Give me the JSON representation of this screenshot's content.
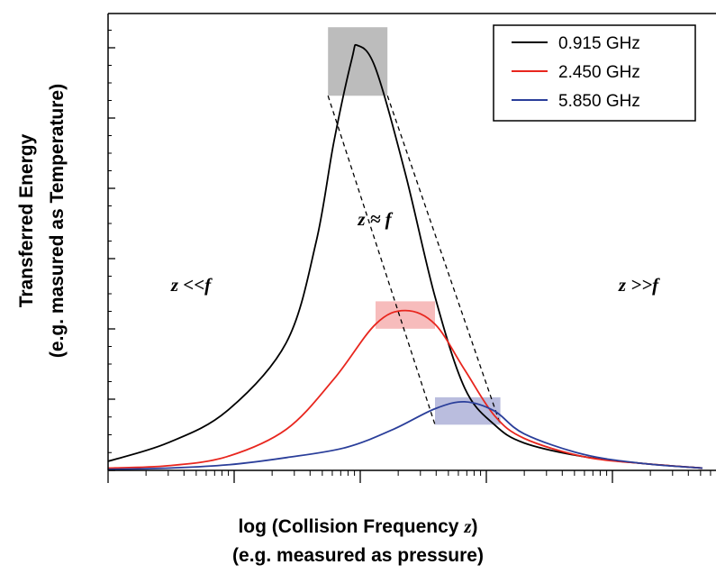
{
  "chart_data": {
    "type": "line",
    "xlabel": "log (Collision Frequency z)",
    "xlabel_line1_prefix": "log (Collision Frequency ",
    "xlabel_line1_var": "z",
    "xlabel_line1_suffix": ")",
    "xlabel_line2": "(e.g. measured as pressure)",
    "ylabel_line1": "Transferred Energy",
    "ylabel_line2": "(e.g. masured as Temperature)",
    "legend_position": "top-right",
    "series": [
      {
        "name": "0.915 GHz",
        "color": "#000000",
        "peak_x": 0.42,
        "peak_y": 0.93,
        "points": [
          [
            0,
            0.02
          ],
          [
            0.1,
            0.06
          ],
          [
            0.2,
            0.13
          ],
          [
            0.3,
            0.28
          ],
          [
            0.35,
            0.5
          ],
          [
            0.38,
            0.72
          ],
          [
            0.41,
            0.9
          ],
          [
            0.42,
            0.93
          ],
          [
            0.45,
            0.88
          ],
          [
            0.5,
            0.65
          ],
          [
            0.55,
            0.38
          ],
          [
            0.6,
            0.18
          ],
          [
            0.65,
            0.1
          ],
          [
            0.7,
            0.06
          ],
          [
            0.8,
            0.03
          ],
          [
            0.9,
            0.015
          ],
          [
            1,
            0.005
          ]
        ]
      },
      {
        "name": "2.450 GHz",
        "color": "#e8261e",
        "peak_x": 0.5,
        "peak_y": 0.35,
        "points": [
          [
            0,
            0.005
          ],
          [
            0.1,
            0.01
          ],
          [
            0.2,
            0.03
          ],
          [
            0.3,
            0.09
          ],
          [
            0.38,
            0.2
          ],
          [
            0.45,
            0.32
          ],
          [
            0.5,
            0.35
          ],
          [
            0.55,
            0.32
          ],
          [
            0.6,
            0.22
          ],
          [
            0.65,
            0.12
          ],
          [
            0.7,
            0.07
          ],
          [
            0.8,
            0.03
          ],
          [
            0.9,
            0.015
          ],
          [
            1,
            0.005
          ]
        ]
      },
      {
        "name": "5.850 GHz",
        "color": "#2a3e9a",
        "peak_x": 0.6,
        "peak_y": 0.15,
        "points": [
          [
            0,
            0.002
          ],
          [
            0.1,
            0.005
          ],
          [
            0.2,
            0.012
          ],
          [
            0.3,
            0.028
          ],
          [
            0.4,
            0.05
          ],
          [
            0.48,
            0.09
          ],
          [
            0.55,
            0.135
          ],
          [
            0.6,
            0.15
          ],
          [
            0.65,
            0.13
          ],
          [
            0.7,
            0.08
          ],
          [
            0.8,
            0.035
          ],
          [
            0.9,
            0.015
          ],
          [
            1,
            0.005
          ]
        ]
      }
    ],
    "peak_boxes": [
      {
        "color": "#a6a6a6",
        "opacity": 0.75,
        "x_range": [
          0.37,
          0.47
        ],
        "y_range": [
          0.82,
          0.97
        ]
      },
      {
        "color": "#f4a6a6",
        "opacity": 0.75,
        "x_range": [
          0.45,
          0.55
        ],
        "y_range": [
          0.31,
          0.37
        ]
      },
      {
        "color": "#a9acd6",
        "opacity": 0.8,
        "x_range": [
          0.55,
          0.66
        ],
        "y_range": [
          0.1,
          0.16
        ]
      }
    ],
    "annotations": [
      {
        "text": "z <<f",
        "region": "left"
      },
      {
        "text": "z ≈ f",
        "region": "center"
      },
      {
        "text": "z >>f",
        "region": "right"
      }
    ],
    "grid": false
  }
}
